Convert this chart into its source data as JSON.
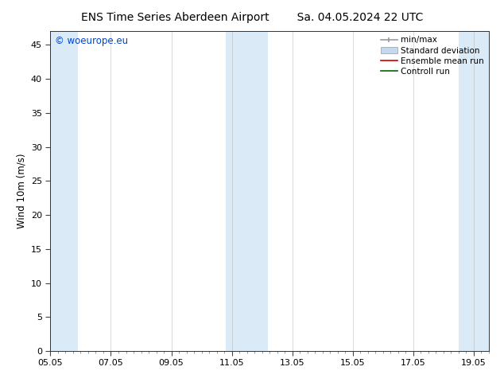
{
  "title_left": "ENS Time Series Aberdeen Airport",
  "title_right": "Sa. 04.05.2024 22 UTC",
  "ylabel": "Wind 10m (m/s)",
  "ylim": [
    0,
    47
  ],
  "yticks": [
    0,
    5,
    10,
    15,
    20,
    25,
    30,
    35,
    40,
    45
  ],
  "xlim_start": 0.0,
  "xlim_end": 14.5,
  "xtick_labels": [
    "05.05",
    "07.05",
    "09.05",
    "11.05",
    "13.05",
    "15.05",
    "17.05",
    "19.05"
  ],
  "xtick_positions": [
    0.0,
    2.0,
    4.0,
    6.0,
    8.0,
    10.0,
    12.0,
    14.0
  ],
  "bg_color": "#ffffff",
  "plot_bg_color": "#ffffff",
  "watermark": "© woeurope.eu",
  "watermark_color": "#0044cc",
  "shaded_bands": [
    {
      "x_start": 0.0,
      "x_end": 0.9,
      "color": "#daeaf7"
    },
    {
      "x_start": 5.8,
      "x_end": 7.2,
      "color": "#daeaf7"
    },
    {
      "x_start": 13.5,
      "x_end": 14.5,
      "color": "#daeaf7"
    }
  ],
  "legend_items": [
    {
      "label": "min/max",
      "color": "#999999",
      "lw": 1.2
    },
    {
      "label": "Standard deviation",
      "color": "#c5d9ee",
      "lw": 5
    },
    {
      "label": "Ensemble mean run",
      "color": "#cc0000",
      "lw": 1.2
    },
    {
      "label": "Controll run",
      "color": "#006600",
      "lw": 1.2
    }
  ],
  "title_fontsize": 10,
  "tick_fontsize": 8,
  "ylabel_fontsize": 8.5,
  "legend_fontsize": 7.5
}
